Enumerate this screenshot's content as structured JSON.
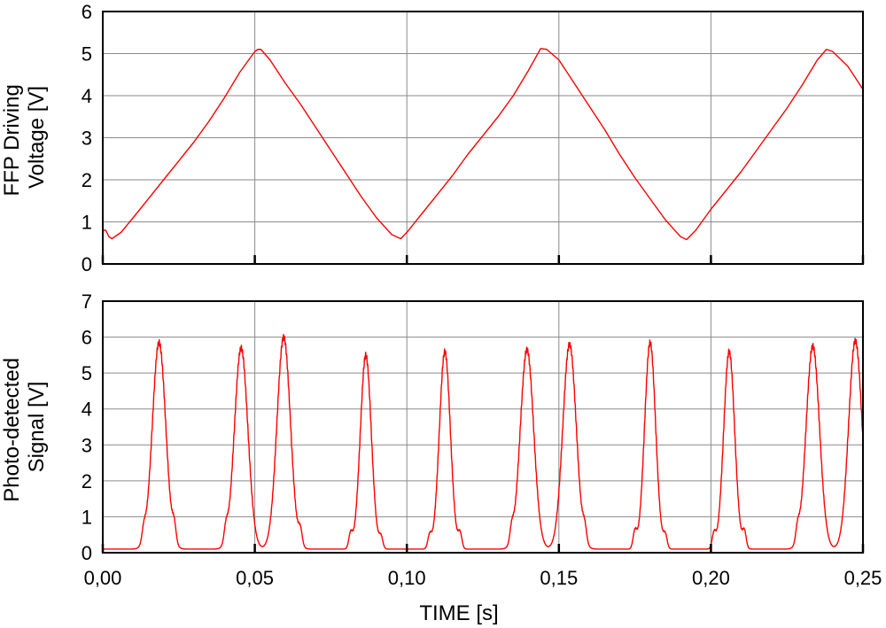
{
  "colors": {
    "trace": "#ff0000",
    "grid": "#8a8a8a",
    "frame": "#000000"
  },
  "chart_data": [
    {
      "type": "line",
      "title": "",
      "xlabel": "",
      "ylabel_lines": [
        "FFP Driving",
        "Voltage [V]"
      ],
      "xlim": [
        0,
        0.25
      ],
      "ylim": [
        0,
        6
      ],
      "yticks": [
        0,
        1,
        2,
        3,
        4,
        5,
        6
      ],
      "ytick_labels": [
        "0",
        "1",
        "2",
        "3",
        "4",
        "5",
        "6"
      ],
      "xticks": [
        0,
        0.05,
        0.1,
        0.15,
        0.2,
        0.25
      ],
      "grid": true,
      "series": [
        {
          "x": [
            0.0,
            0.001,
            0.002,
            0.003,
            0.006,
            0.01,
            0.015,
            0.02,
            0.025,
            0.03,
            0.035,
            0.04,
            0.045,
            0.05,
            0.051,
            0.052,
            0.055,
            0.06,
            0.065,
            0.07,
            0.075,
            0.08,
            0.085,
            0.09,
            0.095,
            0.098,
            0.1,
            0.105,
            0.11,
            0.115,
            0.12,
            0.125,
            0.13,
            0.135,
            0.14,
            0.144,
            0.146,
            0.15,
            0.155,
            0.16,
            0.165,
            0.17,
            0.175,
            0.18,
            0.185,
            0.19,
            0.192,
            0.195,
            0.2,
            0.205,
            0.21,
            0.215,
            0.22,
            0.225,
            0.23,
            0.235,
            0.238,
            0.24,
            0.245,
            0.25
          ],
          "y": [
            0.8,
            0.8,
            0.65,
            0.6,
            0.75,
            1.1,
            1.55,
            2.0,
            2.45,
            2.9,
            3.4,
            3.95,
            4.55,
            5.05,
            5.1,
            5.1,
            4.85,
            4.3,
            3.8,
            3.25,
            2.7,
            2.15,
            1.6,
            1.1,
            0.7,
            0.6,
            0.75,
            1.2,
            1.65,
            2.1,
            2.6,
            3.05,
            3.5,
            4.0,
            4.6,
            5.12,
            5.1,
            4.85,
            4.3,
            3.75,
            3.2,
            2.6,
            2.05,
            1.55,
            1.05,
            0.65,
            0.58,
            0.8,
            1.3,
            1.75,
            2.2,
            2.7,
            3.2,
            3.7,
            4.25,
            4.85,
            5.1,
            5.05,
            4.7,
            4.15
          ]
        }
      ]
    },
    {
      "type": "line",
      "title": "",
      "xlabel": "TIME [s]",
      "ylabel_lines": [
        "Photo-detected",
        "Signal [V]"
      ],
      "xlim": [
        0,
        0.25
      ],
      "ylim": [
        0,
        7
      ],
      "yticks": [
        0,
        1,
        2,
        3,
        4,
        5,
        6,
        7
      ],
      "ytick_labels": [
        "0",
        "1",
        "2",
        "3",
        "4",
        "5",
        "6",
        "7"
      ],
      "xticks": [
        0,
        0.05,
        0.1,
        0.15,
        0.2,
        0.25
      ],
      "xtick_labels": [
        "0,00",
        "0,05",
        "0,10",
        "0,15",
        "0,20",
        "0,25"
      ],
      "grid": true,
      "baseline": 0.1,
      "peaks": [
        {
          "center": 0.0185,
          "height": 5.85,
          "width": 0.0022
        },
        {
          "center": 0.0455,
          "height": 5.7,
          "width": 0.0022
        },
        {
          "center": 0.0595,
          "height": 6.0,
          "width": 0.0022
        },
        {
          "center": 0.0865,
          "height": 5.5,
          "width": 0.0018
        },
        {
          "center": 0.1125,
          "height": 5.6,
          "width": 0.0018
        },
        {
          "center": 0.1395,
          "height": 5.65,
          "width": 0.0022
        },
        {
          "center": 0.1535,
          "height": 5.8,
          "width": 0.0022
        },
        {
          "center": 0.18,
          "height": 5.85,
          "width": 0.0018
        },
        {
          "center": 0.206,
          "height": 5.6,
          "width": 0.0018
        },
        {
          "center": 0.2335,
          "height": 5.75,
          "width": 0.0022
        },
        {
          "center": 0.2475,
          "height": 5.9,
          "width": 0.0022
        }
      ],
      "small_bumps": [
        {
          "center": 0.0135,
          "height": 0.35
        },
        {
          "center": 0.0235,
          "height": 0.45
        },
        {
          "center": 0.0405,
          "height": 0.4
        },
        {
          "center": 0.065,
          "height": 0.4
        },
        {
          "center": 0.0815,
          "height": 0.4
        },
        {
          "center": 0.0915,
          "height": 0.3
        },
        {
          "center": 0.1075,
          "height": 0.35
        },
        {
          "center": 0.1175,
          "height": 0.4
        },
        {
          "center": 0.1345,
          "height": 0.4
        },
        {
          "center": 0.1585,
          "height": 0.4
        },
        {
          "center": 0.175,
          "height": 0.45
        },
        {
          "center": 0.185,
          "height": 0.35
        },
        {
          "center": 0.201,
          "height": 0.4
        },
        {
          "center": 0.211,
          "height": 0.45
        },
        {
          "center": 0.2285,
          "height": 0.4
        }
      ]
    }
  ]
}
